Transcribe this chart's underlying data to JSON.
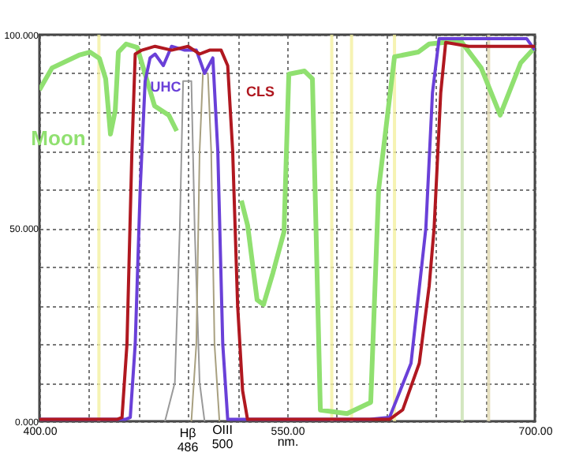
{
  "chart_data": {
    "type": "line",
    "xlabel": "nm.",
    "xlim": [
      400,
      700
    ],
    "ylim": [
      0,
      100
    ],
    "xticks": [
      {
        "value": 400,
        "label": "400.00"
      },
      {
        "value": 430,
        "label": null
      },
      {
        "value": 460,
        "label": null
      },
      {
        "value": 490,
        "label": null
      },
      {
        "value": 520,
        "label": null
      },
      {
        "value": 550,
        "label": "550.00"
      },
      {
        "value": 580,
        "label": null
      },
      {
        "value": 610,
        "label": null
      },
      {
        "value": 640,
        "label": null
      },
      {
        "value": 670,
        "label": null
      },
      {
        "value": 700,
        "label": "700.00"
      }
    ],
    "yticks": [
      {
        "value": 0,
        "label": "0.000"
      },
      {
        "value": 10,
        "label": null
      },
      {
        "value": 20,
        "label": null
      },
      {
        "value": 30,
        "label": null
      },
      {
        "value": 40,
        "label": null
      },
      {
        "value": 50,
        "label": "50.000"
      },
      {
        "value": 60,
        "label": null
      },
      {
        "value": 70,
        "label": null
      },
      {
        "value": 80,
        "label": null
      },
      {
        "value": 90,
        "label": null
      },
      {
        "value": 100,
        "label": "100.000"
      }
    ],
    "grid": true,
    "line_style": "solid",
    "marker": "none",
    "ref_lines": [
      {
        "axis": "x",
        "value": 436,
        "color": "#f4f0a0"
      },
      {
        "axis": "x",
        "value": 577,
        "color": "#f4f0a0"
      },
      {
        "axis": "x",
        "value": 589,
        "color": "#f4f0a0"
      },
      {
        "axis": "x",
        "value": 615,
        "color": "#f4f0a0"
      },
      {
        "axis": "x",
        "value": 656,
        "color": "#c8e0b0"
      },
      {
        "axis": "x",
        "value": 672,
        "color": "#e0d8b0"
      }
    ],
    "series": [
      {
        "name": "Moon",
        "color": "#90e070",
        "x": [
          400,
          407.6,
          423.9,
          430.6,
          436.3,
          440.1,
          443,
          445.9,
          447.8,
          452.5,
          459.2,
          469.7,
          478.3,
          483.1,
          500,
          522.3,
          526.1,
          531.8,
          535.7,
          541.4,
          548.1,
          551,
          560.5,
          565.3,
          570.1,
          586.3,
          600.6,
          605.4,
          615,
          629.3,
          636,
          655.1,
          667.5,
          679,
          691.4,
          700
        ],
        "values": [
          85.7,
          91.4,
          94.7,
          95.5,
          93.9,
          88.6,
          74.3,
          80.4,
          95.5,
          97.6,
          96.7,
          81.6,
          79.2,
          75.1,
          null,
          57.1,
          50.6,
          31.4,
          30.2,
          38.4,
          49,
          89.8,
          90.6,
          88.6,
          2.9,
          2,
          4.9,
          60,
          94.3,
          95.5,
          97.6,
          98.4,
          91.4,
          79.2,
          92.7,
          96.7
        ]
      },
      {
        "color": "#9a9a9a",
        "x": [
          476,
          482,
          485,
          487,
          492,
          494,
          497,
          500
        ],
        "values": [
          0,
          10,
          50,
          88,
          88,
          50,
          10,
          0
        ]
      },
      {
        "color": "#a8a080",
        "x": [
          492,
          495,
          497,
          499,
          502,
          504,
          506,
          509
        ],
        "values": [
          0,
          20,
          70,
          90,
          90,
          70,
          20,
          0
        ]
      },
      {
        "name": "UHC",
        "color": "#6a40d8",
        "x": [
          400,
          452,
          455,
          458,
          461,
          464,
          467,
          470,
          475,
          480,
          488,
          495,
          500,
          505,
          508,
          511,
          514,
          520,
          600,
          612,
          625,
          634,
          638,
          642,
          660,
          680,
          695,
          700
        ],
        "values": [
          0.5,
          0.5,
          1,
          20,
          60,
          88,
          94,
          95,
          92,
          97,
          96,
          96,
          90,
          94,
          70,
          20,
          0.5,
          0.5,
          0.5,
          1,
          15,
          50,
          85,
          99,
          99,
          99,
          99,
          96
        ]
      },
      {
        "name": "CLS",
        "color": "#b01820",
        "x": [
          400,
          447,
          450,
          453,
          456,
          458,
          462,
          470,
          480,
          490,
          497,
          503,
          510,
          514,
          517,
          520,
          523,
          526,
          540,
          612,
          620,
          630,
          636,
          639,
          643,
          646,
          660,
          680,
          700
        ],
        "values": [
          0.5,
          0.5,
          1,
          20,
          70,
          95,
          96,
          97,
          96,
          97,
          95,
          96,
          96,
          92,
          70,
          30,
          8,
          0.5,
          0.5,
          0.5,
          3,
          15,
          35,
          50,
          85,
          98,
          97,
          97,
          97
        ]
      }
    ],
    "annotations": [
      "Hβ 486",
      "OIII 500"
    ]
  }
}
